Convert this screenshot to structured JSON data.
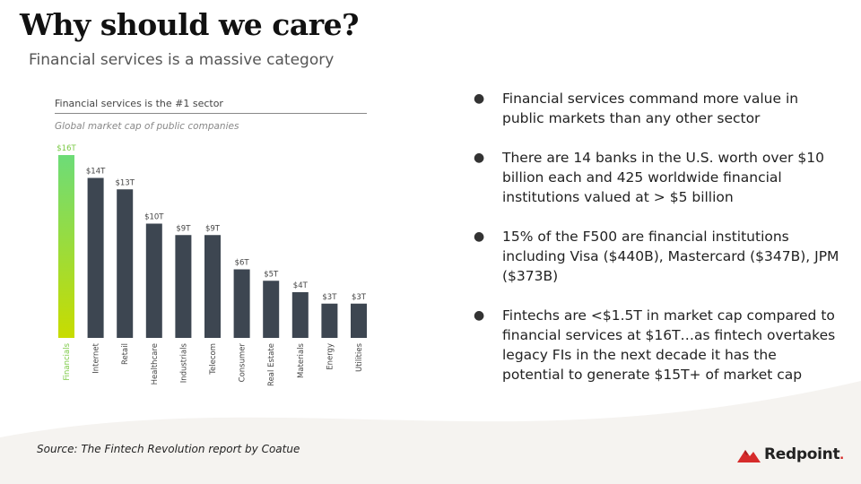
{
  "slide": {
    "title": "Why should we care?",
    "subtitle": "Financial services is a massive category",
    "source": "Source: The Fintech Revolution report by Coatue",
    "logo_text": "Redpoint",
    "logo_dot": "."
  },
  "bullets": [
    {
      "marker": "●",
      "text": "Financial services command more value in public markets than any other sector"
    },
    {
      "marker": "●",
      "text": "There are 14 banks in the U.S. worth over $10 billion each and 425 worldwide financial institutions valued at > $5 billion"
    },
    {
      "marker": "●",
      "text": "15% of the F500 are financial institutions including Visa ($440B), Mastercard ($347B), JPM ($373B)"
    },
    {
      "marker": "●",
      "text": "Fintechs are <$1.5T in market cap compared to financial services at $16T…as fintech overtakes legacy FIs in the next decade it has the potential to generate $15T+ of market cap"
    }
  ],
  "colors": {
    "bar": "#3d4651",
    "highlight_top": "#6ddc78",
    "highlight_bottom": "#c8dc00",
    "highlight_label": "#7ac943",
    "logo_red": "#d62b2b",
    "wave": "#f5f3f0"
  },
  "chart_data": {
    "type": "bar",
    "title": "Financial services is the #1 sector",
    "subtitle": "Global market cap of public companies",
    "categories": [
      "Financials",
      "Internet",
      "Retail",
      "Healthcare",
      "Industrials",
      "Telecom",
      "Consumer",
      "Real Estate",
      "Materials",
      "Energy",
      "Utilities"
    ],
    "values": [
      16,
      14,
      13,
      10,
      9,
      9,
      6,
      5,
      4,
      3,
      3
    ],
    "data_labels": [
      "$16T",
      "$14T",
      "$13T",
      "$10T",
      "$9T",
      "$9T",
      "$6T",
      "$5T",
      "$4T",
      "$3T",
      "$3T"
    ],
    "unit": "$T",
    "highlight_category": "Financials",
    "ylim": [
      0,
      16
    ],
    "grid": false,
    "legend": "none"
  }
}
